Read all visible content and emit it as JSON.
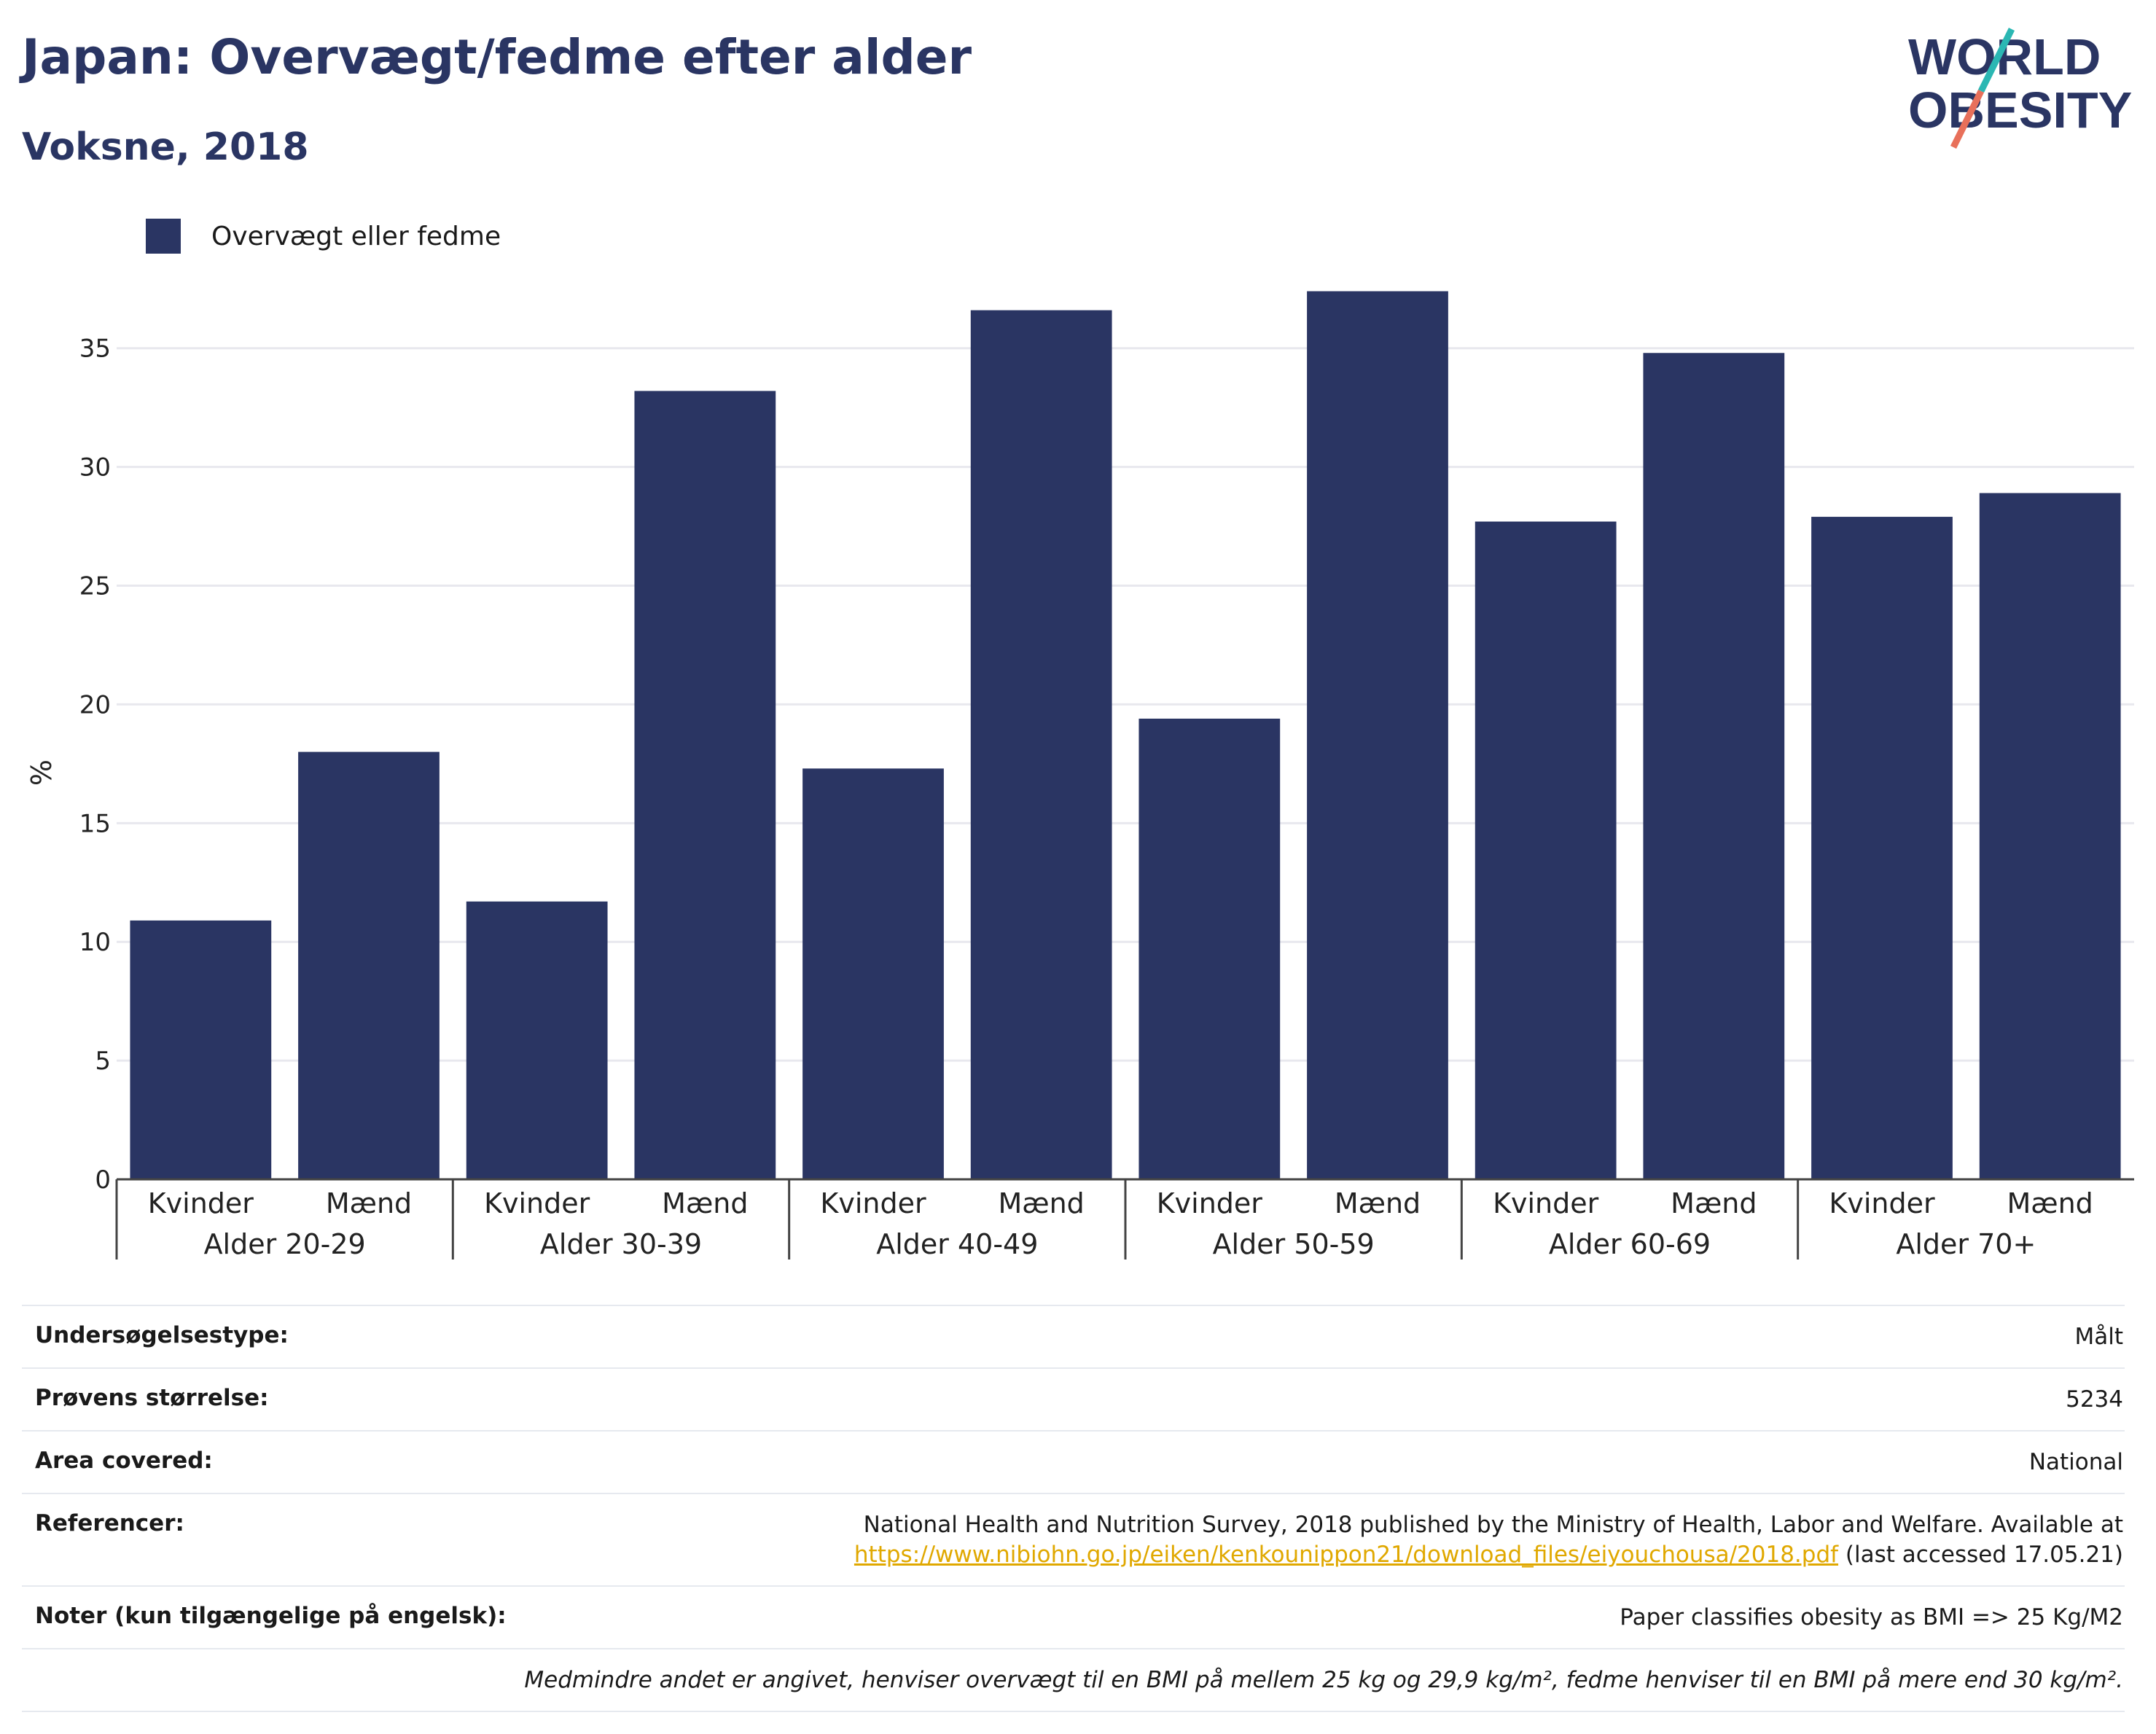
{
  "header": {
    "title": "Japan: Overvægt/fedme efter alder",
    "subtitle": "Voksne, 2018",
    "logo_line1": "WORLD",
    "logo_line2": "OBESITY"
  },
  "colors": {
    "bar": "#2a3563",
    "title": "#2a3563",
    "logo_teal": "#2bb7b3",
    "logo_coral": "#e8705a",
    "link": "#e0a800"
  },
  "chart_data": {
    "type": "bar",
    "title": "",
    "ylabel": "%",
    "ylim": [
      0,
      38
    ],
    "yticks": [
      0,
      5,
      10,
      15,
      20,
      25,
      30,
      35
    ],
    "grid": true,
    "legend_position": "top-left",
    "groups": [
      "Alder 20-29",
      "Alder 30-39",
      "Alder 40-49",
      "Alder 50-59",
      "Alder 60-69",
      "Alder 70+"
    ],
    "subcategories": [
      "Kvinder",
      "Mænd"
    ],
    "series": [
      {
        "name": "Overvægt eller fedme",
        "values": [
          10.9,
          18.0,
          11.7,
          33.2,
          17.3,
          36.6,
          19.4,
          37.4,
          27.7,
          34.8,
          27.9,
          28.9
        ]
      }
    ]
  },
  "info": {
    "rows": [
      {
        "label": "Undersøgelsestype:",
        "value": "Målt"
      },
      {
        "label": "Prøvens størrelse:",
        "value": "5234"
      },
      {
        "label": "Area covered:",
        "value": "National"
      }
    ],
    "references": {
      "label": "Referencer:",
      "text": "National Health and Nutrition Survey, 2018 published by the Ministry of Health, Labor and Welfare. Available at",
      "link": "https://www.nibiohn.go.jp/eiken/kenkounippon21/download_files/eiyouchousa/2018.pdf",
      "suffix": "(last accessed 17.05.21)"
    },
    "notes": {
      "label": "Noter (kun tilgængelige på engelsk):",
      "value": "Paper classifies obesity as BMI => 25 Kg/M2"
    },
    "footnote": "Medmindre andet er angivet, henviser overvægt til en BMI på mellem 25 kg og 29,9 kg/m², fedme henviser til en BMI på mere end 30 kg/m²."
  }
}
